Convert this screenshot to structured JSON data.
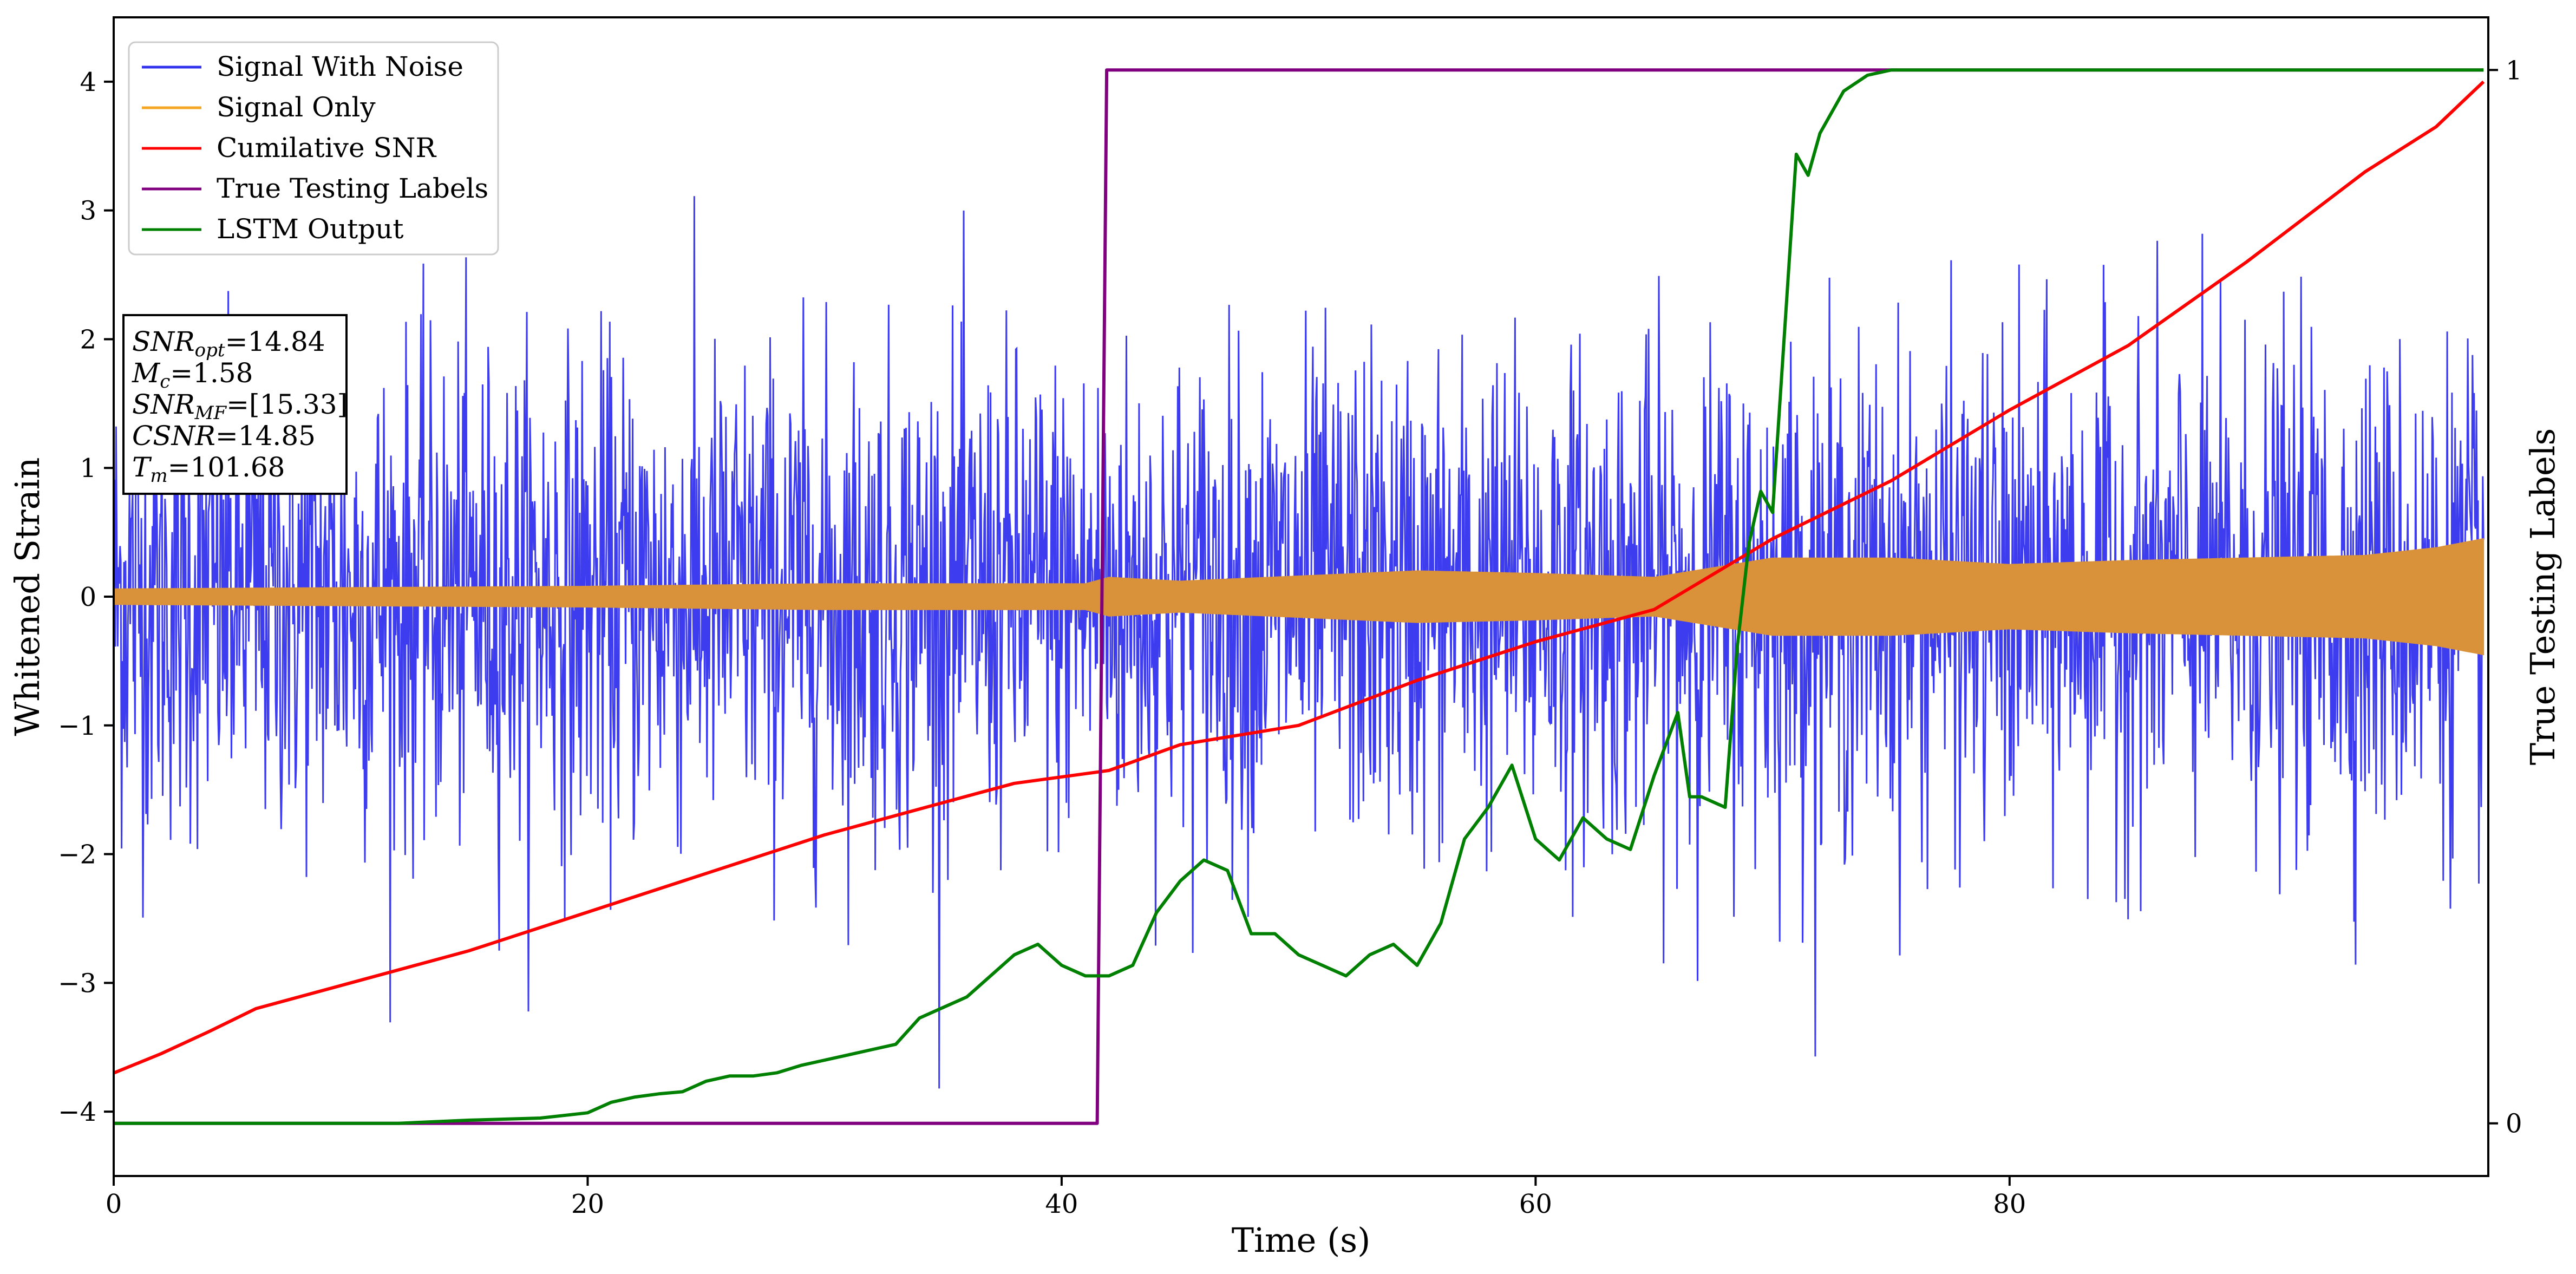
{
  "chart_data": {
    "type": "line",
    "xlabel": "Time (s)",
    "ylabel_left": "Whitened Strain",
    "ylabel_right": "True Testing Labels",
    "xlim": [
      0,
      100.2
    ],
    "ylim_left": [
      -4.5,
      4.5
    ],
    "ylim_right": [
      -0.05,
      1.05
    ],
    "x_ticks": [
      0,
      20,
      40,
      60,
      80
    ],
    "y_ticks_left": [
      -4,
      -3,
      -2,
      -1,
      0,
      1,
      2,
      3,
      4
    ],
    "y_ticks_right": [
      0,
      1
    ],
    "grid": false,
    "legend_position": "upper-left",
    "legend": [
      {
        "label": "Signal With Noise",
        "color": "#3333ee"
      },
      {
        "label": "Signal Only",
        "color": "#f5a623"
      },
      {
        "label": "Cumilative SNR",
        "color": "#ff0000"
      },
      {
        "label": "True Testing Labels",
        "color": "#800080"
      },
      {
        "label": "LSTM Output",
        "color": "#008000"
      }
    ],
    "annotation": [
      {
        "base": "SNR",
        "sub": "opt",
        "value": "=14.84"
      },
      {
        "base": "M",
        "sub": "c",
        "value": "=1.58"
      },
      {
        "base": "SNR",
        "sub": "MF",
        "value": "=[15.33]"
      },
      {
        "base": "CSNR",
        "sub": "",
        "value": "=14.85"
      },
      {
        "base": "T",
        "sub": "m",
        "value": "=101.68"
      }
    ],
    "series": [
      {
        "name": "Signal With Noise",
        "axis": "left",
        "color": "#3333ee",
        "envelope": {
          "x": [
            0,
            100
          ],
          "typical_amplitude": 1.0,
          "peak_amplitude": 3.9
        }
      },
      {
        "name": "Signal Only",
        "axis": "left",
        "color": "#f5a623",
        "envelope": {
          "x": [
            0,
            10,
            20,
            30,
            41,
            42,
            45,
            50,
            55,
            60,
            65,
            70,
            75,
            80,
            85,
            90,
            95,
            98,
            100
          ],
          "amplitude": [
            0.06,
            0.07,
            0.08,
            0.1,
            0.1,
            0.15,
            0.12,
            0.16,
            0.2,
            0.18,
            0.15,
            0.3,
            0.3,
            0.25,
            0.28,
            0.3,
            0.32,
            0.38,
            0.45
          ]
        }
      },
      {
        "name": "Cumilative SNR",
        "axis": "left",
        "color": "#ff0000",
        "x": [
          0,
          2,
          4,
          6,
          10,
          15,
          20,
          25,
          30,
          35,
          38,
          42,
          45,
          50,
          55,
          60,
          65,
          70,
          75,
          80,
          85,
          90,
          95,
          98,
          100
        ],
        "y": [
          -3.7,
          -3.55,
          -3.38,
          -3.2,
          -3.0,
          -2.75,
          -2.45,
          -2.15,
          -1.85,
          -1.6,
          -1.45,
          -1.35,
          -1.15,
          -1.0,
          -0.65,
          -0.35,
          -0.1,
          0.45,
          0.9,
          1.45,
          1.95,
          2.6,
          3.3,
          3.65,
          4.0
        ]
      },
      {
        "name": "True Testing Labels",
        "axis": "right",
        "color": "#800080",
        "x": [
          0,
          41.5,
          41.9,
          100
        ],
        "y": [
          0,
          0,
          1,
          1
        ]
      },
      {
        "name": "LSTM Output",
        "axis": "right",
        "color": "#008000",
        "x": [
          0,
          12,
          15,
          18,
          20,
          21,
          22,
          23,
          24,
          25,
          26,
          27,
          28,
          29,
          30,
          31,
          32,
          33,
          34,
          35,
          36,
          37,
          38,
          39,
          40,
          41,
          42,
          43,
          44,
          45,
          46,
          47,
          48,
          49,
          50,
          51,
          52,
          53,
          54,
          55,
          56,
          57,
          58,
          59,
          60,
          61,
          62,
          63,
          64,
          65,
          66,
          66.5,
          67,
          68,
          68.5,
          69,
          69.5,
          70,
          70.5,
          71,
          71.5,
          72,
          73,
          74,
          75,
          77,
          80,
          100
        ],
        "y": [
          0,
          0,
          0.003,
          0.005,
          0.01,
          0.02,
          0.025,
          0.028,
          0.03,
          0.04,
          0.045,
          0.045,
          0.048,
          0.055,
          0.06,
          0.065,
          0.07,
          0.075,
          0.1,
          0.11,
          0.12,
          0.14,
          0.16,
          0.17,
          0.15,
          0.14,
          0.14,
          0.15,
          0.2,
          0.23,
          0.25,
          0.24,
          0.18,
          0.18,
          0.16,
          0.15,
          0.14,
          0.16,
          0.17,
          0.15,
          0.19,
          0.27,
          0.3,
          0.34,
          0.27,
          0.25,
          0.29,
          0.27,
          0.26,
          0.33,
          0.39,
          0.31,
          0.31,
          0.3,
          0.45,
          0.55,
          0.6,
          0.58,
          0.75,
          0.92,
          0.9,
          0.94,
          0.98,
          0.995,
          1.0,
          1.0,
          1.0,
          1.0
        ]
      }
    ]
  }
}
